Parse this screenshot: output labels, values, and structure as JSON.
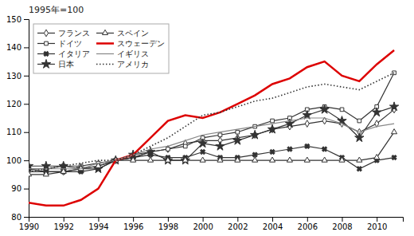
{
  "chart_data": {
    "type": "line",
    "title": "1995年=100",
    "x": [
      1990,
      1991,
      1992,
      1993,
      1994,
      1995,
      1996,
      1997,
      1998,
      1999,
      2000,
      2001,
      2002,
      2003,
      2004,
      2005,
      2006,
      2007,
      2008,
      2009,
      2010,
      2011
    ],
    "xlim": [
      1990,
      2011.5
    ],
    "ylim": [
      80,
      150
    ],
    "xticks": [
      1990,
      1992,
      1994,
      1996,
      1998,
      2000,
      2002,
      2004,
      2006,
      2008,
      2010
    ],
    "yticks": [
      80,
      90,
      100,
      110,
      120,
      130,
      140,
      150
    ],
    "grid": false,
    "legend": "upper left",
    "series": [
      {
        "name": "フランス",
        "color": "#333333",
        "marker": "diamond",
        "line_style": "solid",
        "values": [
          96,
          96,
          96,
          97,
          98,
          100,
          101,
          103,
          104,
          106,
          107,
          107,
          108,
          109,
          111,
          112,
          113,
          114,
          113,
          110,
          113,
          118
        ]
      },
      {
        "name": "ドイツ",
        "color": "#333333",
        "marker": "square",
        "line_style": "solid",
        "values": [
          97,
          97,
          98,
          98,
          99,
          100,
          101,
          103,
          104,
          105,
          108,
          109,
          110,
          112,
          114,
          115,
          118,
          119,
          118,
          114,
          119,
          131
        ]
      },
      {
        "name": "イタリア",
        "color": "#333333",
        "marker": "cross",
        "line_style": "solid",
        "values": [
          97,
          96,
          96,
          96,
          97,
          100,
          101,
          102,
          101,
          101,
          103,
          101,
          101,
          102,
          103,
          104,
          105,
          104,
          101,
          97,
          100,
          101
        ]
      },
      {
        "name": "日本",
        "color": "#333333",
        "marker": "star",
        "line_style": "solid",
        "values": [
          98,
          98,
          98,
          97,
          97,
          100,
          102,
          103,
          100,
          100,
          106,
          105,
          107,
          109,
          111,
          113,
          116,
          118,
          114,
          108,
          117,
          119
        ]
      },
      {
        "name": "スペイン",
        "color": "#333333",
        "marker": "triangle",
        "line_style": "solid",
        "values": [
          95,
          95,
          96,
          97,
          98,
          100,
          100,
          100,
          100,
          100,
          100,
          100,
          100,
          100,
          100,
          100,
          100,
          100,
          100,
          100,
          101,
          110
        ]
      },
      {
        "name": "スウェーデン",
        "color": "#dd0000",
        "line_style": "solid",
        "values": [
          85,
          84,
          84,
          86,
          90,
          100,
          102,
          108,
          114,
          116,
          115,
          117,
          120,
          123,
          127,
          129,
          133,
          135,
          130,
          128,
          134,
          139
        ]
      },
      {
        "name": "イギリス",
        "color": "#888888",
        "line_style": "solid",
        "values": [
          97,
          97,
          97,
          97,
          99,
          100,
          102,
          104,
          105,
          107,
          109,
          110,
          111,
          112,
          113,
          114,
          115,
          115,
          113,
          110,
          112,
          113
        ]
      },
      {
        "name": "アメリカ",
        "color": "#333333",
        "line_style": "dotted",
        "values": [
          96,
          97,
          98,
          99,
          100,
          100,
          102,
          105,
          108,
          112,
          116,
          117,
          119,
          121,
          122,
          124,
          126,
          127,
          126,
          125,
          128,
          131
        ]
      }
    ]
  }
}
